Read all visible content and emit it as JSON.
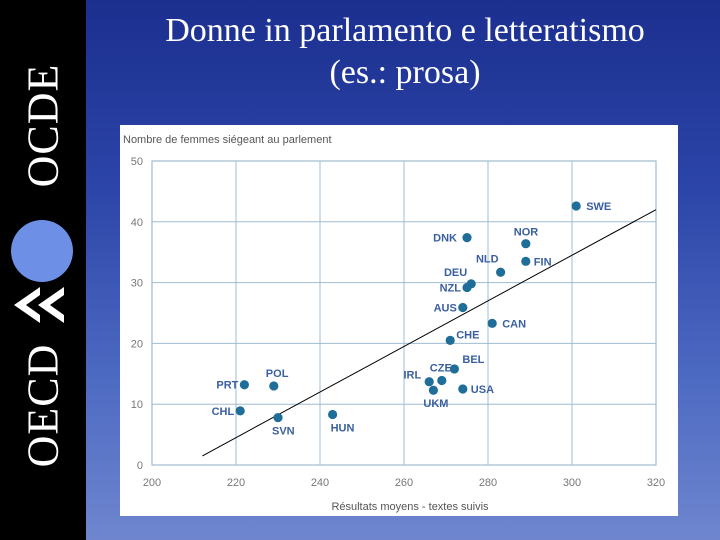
{
  "slide": {
    "title_line1": "Donne in parlamento e letteratismo",
    "title_line2": "(es.: prosa)"
  },
  "logo": {
    "text_top": "OCDE",
    "text_bottom": "OECD",
    "circle_color": "#6e8fe6"
  },
  "chart_data": {
    "type": "scatter",
    "title": "",
    "xlabel": "Résultats moyens - textes suivis",
    "ylabel": "Nombre de femmes siégeant au parlement",
    "xlim": [
      200,
      320
    ],
    "ylim": [
      0,
      50
    ],
    "xticks": [
      "200",
      "220",
      "240",
      "260",
      "280",
      "300",
      "320"
    ],
    "yticks": [
      "0",
      "10",
      "20",
      "30",
      "40",
      "50"
    ],
    "grid": true,
    "point_color": "#1f6e99",
    "trendline": {
      "x1": 212,
      "y1": 1.5,
      "x2": 320,
      "y2": 42
    },
    "points": [
      {
        "label": "SWE",
        "x": 301,
        "y": 42.6
      },
      {
        "label": "NOR",
        "x": 289,
        "y": 36.4
      },
      {
        "label": "DNK",
        "x": 275,
        "y": 37.4
      },
      {
        "label": "FIN",
        "x": 289,
        "y": 33.5
      },
      {
        "label": "NLD",
        "x": 283,
        "y": 31.7
      },
      {
        "label": "DEU",
        "x": 276,
        "y": 29.8
      },
      {
        "label": "NZL",
        "x": 275,
        "y": 29.2
      },
      {
        "label": "AUS",
        "x": 274,
        "y": 25.9
      },
      {
        "label": "CAN",
        "x": 281,
        "y": 23.3
      },
      {
        "label": "CHE",
        "x": 271,
        "y": 20.5
      },
      {
        "label": "BEL",
        "x": 272,
        "y": 15.8
      },
      {
        "label": "CZE",
        "x": 269,
        "y": 13.9
      },
      {
        "label": "IRL",
        "x": 266,
        "y": 13.7
      },
      {
        "label": "UKM",
        "x": 267,
        "y": 12.3
      },
      {
        "label": "USA",
        "x": 274,
        "y": 12.5
      },
      {
        "label": "POL",
        "x": 229,
        "y": 13.0
      },
      {
        "label": "PRT",
        "x": 222,
        "y": 13.2
      },
      {
        "label": "CHL",
        "x": 221,
        "y": 8.9
      },
      {
        "label": "SVN",
        "x": 230,
        "y": 7.8
      },
      {
        "label": "HUN",
        "x": 243,
        "y": 8.3
      }
    ]
  }
}
